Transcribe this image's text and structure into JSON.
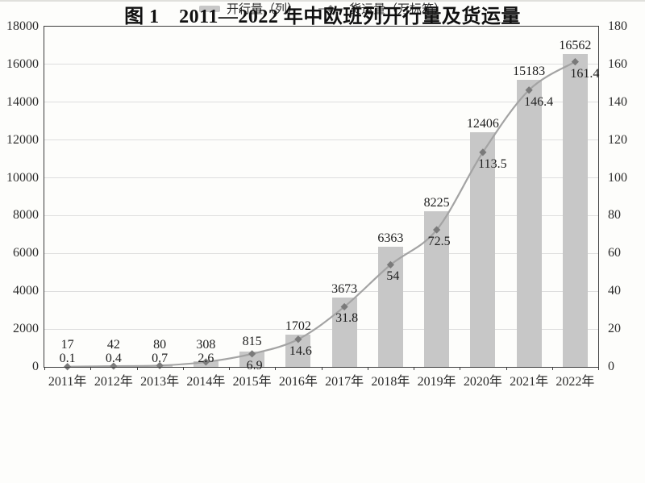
{
  "figure": {
    "caption": "图 1　2011—2022 年中欧班列开行量及货运量"
  },
  "chart_data": {
    "type": "bar",
    "subtype": "bar-line-combo",
    "title": "图 1　2011—2022 年中欧班列开行量及货运量",
    "categories": [
      "2011年",
      "2012年",
      "2013年",
      "2014年",
      "2015年",
      "2016年",
      "2017年",
      "2018年",
      "2019年",
      "2020年",
      "2021年",
      "2022年"
    ],
    "series": [
      {
        "name": "开行量（列）",
        "type": "bar",
        "axis": "left",
        "values": [
          17,
          42,
          80,
          308,
          815,
          1702,
          3673,
          6363,
          8225,
          12406,
          15183,
          16562
        ],
        "color": "#c7c7c7"
      },
      {
        "name": "货运量（万标箱）",
        "type": "line",
        "axis": "right",
        "values": [
          0.1,
          0.4,
          0.7,
          2.6,
          6.9,
          14.6,
          31.8,
          54,
          72.5,
          113.5,
          146.4,
          161.4
        ],
        "color": "#a3a3a3",
        "marker": "diamond",
        "marker_color": "#7a7a7a"
      }
    ],
    "left_axis": {
      "min": 0,
      "max": 18000,
      "step": 2000
    },
    "right_axis": {
      "min": 0,
      "max": 180,
      "step": 20
    },
    "grid": true,
    "legend_position": "bottom",
    "data_labels": true,
    "colors": {
      "background": "#fdfdfb",
      "axis": "#3d3d3d",
      "gridline": "#dedede",
      "bar": "#c7c7c7",
      "line": "#a3a3a3",
      "marker": "#7a7a7a",
      "text": "#1e1e1e"
    }
  }
}
